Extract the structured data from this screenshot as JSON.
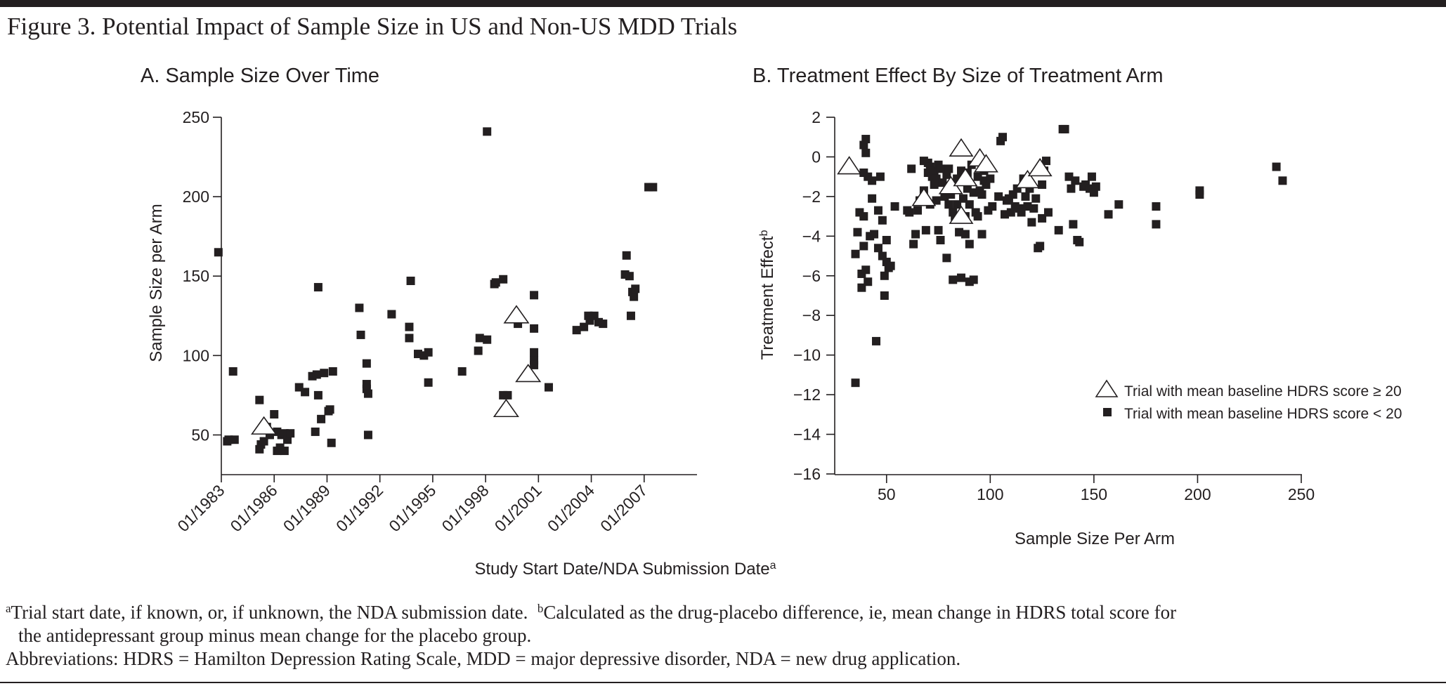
{
  "figure_title": "Figure 3. Potential Impact of Sample Size in US and Non-US MDD Trials",
  "footnotes": {
    "a_marker": "a",
    "a_text": "Trial start date, if known, or, if unknown, the NDA submission date.",
    "b_marker": "b",
    "b_text": "Calculated as the drug-placebo difference, ie, mean change in HDRS total score for",
    "b_text_cont": "the antidepressant group minus mean change for the placebo group.",
    "abbreviations": "Abbreviations: HDRS = Hamilton Depression Rating Scale, MDD = major depressive disorder, NDA = new drug application."
  },
  "chart_data": [
    {
      "type": "scatter",
      "title": "A. Sample Size Over Time",
      "xlabel": "Study Start Date/NDA Submission Date",
      "xlabel_superscript": "a",
      "ylabel": "Sample Size per Arm",
      "x_tick_labels": [
        "01/1983",
        "01/1986",
        "01/1989",
        "01/1992",
        "01/1995",
        "01/1998",
        "01/2001",
        "01/2004",
        "01/2007"
      ],
      "x_range": [
        "01/1983",
        "01/2010"
      ],
      "ylim": [
        25,
        250
      ],
      "y_ticks": [
        50,
        100,
        150,
        200,
        250
      ],
      "grid": false,
      "legend": false,
      "marker_color": "#231f20",
      "series": [
        {
          "marker": "square",
          "points": [
            [
              "11/1982",
              165
            ],
            [
              "05/1983",
              46
            ],
            [
              "06/1983",
              47
            ],
            [
              "10/1983",
              47
            ],
            [
              "09/1983",
              90
            ],
            [
              "03/1985",
              72
            ],
            [
              "03/1985",
              41
            ],
            [
              "04/1985",
              44
            ],
            [
              "06/1985",
              46
            ],
            [
              "08/1985",
              55
            ],
            [
              "10/1985",
              50
            ],
            [
              "01/1986",
              63
            ],
            [
              "03/1986",
              40
            ],
            [
              "03/1986",
              52
            ],
            [
              "05/1986",
              42
            ],
            [
              "06/1986",
              50
            ],
            [
              "08/1986",
              40
            ],
            [
              "08/1986",
              51
            ],
            [
              "10/1986",
              47
            ],
            [
              "12/1986",
              51
            ],
            [
              "06/1987",
              80
            ],
            [
              "10/1987",
              77
            ],
            [
              "03/1988",
              87
            ],
            [
              "05/1988",
              52
            ],
            [
              "07/1988",
              75
            ],
            [
              "06/1988",
              88
            ],
            [
              "07/1988",
              143
            ],
            [
              "09/1988",
              60
            ],
            [
              "11/1988",
              89
            ],
            [
              "03/1989",
              66
            ],
            [
              "02/1989",
              65
            ],
            [
              "04/1989",
              45
            ],
            [
              "05/1989",
              90
            ],
            [
              "11/1990",
              130
            ],
            [
              "12/1990",
              113
            ],
            [
              "04/1991",
              95
            ],
            [
              "04/1991",
              82
            ],
            [
              "04/1991",
              79
            ],
            [
              "05/1991",
              76
            ],
            [
              "05/1991",
              50
            ],
            [
              "09/1992",
              126
            ],
            [
              "10/1993",
              147
            ],
            [
              "09/1993",
              118
            ],
            [
              "09/1993",
              111
            ],
            [
              "03/1994",
              101
            ],
            [
              "07/1994",
              100
            ],
            [
              "10/1994",
              102
            ],
            [
              "10/1994",
              83
            ],
            [
              "09/1996",
              90
            ],
            [
              "08/1997",
              103
            ],
            [
              "09/1997",
              111
            ],
            [
              "02/1998",
              110
            ],
            [
              "02/1998",
              241
            ],
            [
              "07/1998",
              145
            ],
            [
              "08/1998",
              146
            ],
            [
              "01/1999",
              148
            ],
            [
              "01/1999",
              75
            ],
            [
              "04/1999",
              75
            ],
            [
              "11/1999",
              120
            ],
            [
              "10/2000",
              138
            ],
            [
              "10/2000",
              117
            ],
            [
              "10/2000",
              102
            ],
            [
              "10/2000",
              97
            ],
            [
              "10/2000",
              94
            ],
            [
              "08/2001",
              80
            ],
            [
              "03/2003",
              116
            ],
            [
              "08/2003",
              118
            ],
            [
              "11/2003",
              125
            ],
            [
              "12/2003",
              122
            ],
            [
              "03/2004",
              125
            ],
            [
              "06/2004",
              121
            ],
            [
              "09/2004",
              120
            ],
            [
              "12/2005",
              151
            ],
            [
              "01/2006",
              163
            ],
            [
              "03/2006",
              150
            ],
            [
              "05/2006",
              140
            ],
            [
              "04/2006",
              125
            ],
            [
              "06/2006",
              137
            ],
            [
              "07/2006",
              142
            ],
            [
              "04/2007",
              206
            ],
            [
              "07/2007",
              206
            ]
          ]
        },
        {
          "marker": "open-triangle",
          "points": [
            [
              "06/1985",
              55
            ],
            [
              "03/1999",
              66
            ],
            [
              "10/1999",
              125
            ],
            [
              "06/2000",
              88
            ]
          ]
        }
      ]
    },
    {
      "type": "scatter",
      "title": "B. Treatment Effect By Size of Treatment Arm",
      "xlabel": "Sample Size Per Arm",
      "ylabel": "Treatment Effect",
      "ylabel_superscript": "b",
      "xlim": [
        25,
        250
      ],
      "x_ticks": [
        50,
        100,
        150,
        200,
        250
      ],
      "ylim": [
        -16,
        2
      ],
      "y_ticks": [
        2,
        0,
        -2,
        -4,
        -6,
        -8,
        -10,
        -12,
        -14,
        -16
      ],
      "grid": false,
      "legend": "bottom-right",
      "legend_entries": [
        {
          "marker": "open-triangle",
          "label": "Trial with mean baseline HDRS score ≥ 20"
        },
        {
          "marker": "square",
          "label": "Trial with mean baseline HDRS score < 20"
        }
      ],
      "marker_color": "#231f20",
      "series": [
        {
          "marker": "square",
          "points": [
            [
              35,
              -11.4
            ],
            [
              35,
              -4.9
            ],
            [
              36,
              -3.8
            ],
            [
              37,
              -2.8
            ],
            [
              38,
              -6.6
            ],
            [
              38,
              -5.9
            ],
            [
              39,
              -4.5
            ],
            [
              39,
              -3.0
            ],
            [
              39,
              -0.8
            ],
            [
              39,
              0.6
            ],
            [
              40,
              0.9
            ],
            [
              40,
              0.2
            ],
            [
              40,
              -5.7
            ],
            [
              41,
              -6.3
            ],
            [
              41,
              -1.0
            ],
            [
              42,
              -4.0
            ],
            [
              43,
              -2.1
            ],
            [
              43,
              -1.2
            ],
            [
              44,
              -3.9
            ],
            [
              45,
              -9.3
            ],
            [
              46,
              -4.6
            ],
            [
              46,
              -2.7
            ],
            [
              47,
              -1.0
            ],
            [
              48,
              -3.2
            ],
            [
              48,
              -5.0
            ],
            [
              49,
              -6.0
            ],
            [
              49,
              -7.0
            ],
            [
              50,
              -4.2
            ],
            [
              50,
              -5.3
            ],
            [
              51,
              -5.6
            ],
            [
              52,
              -5.5
            ],
            [
              54,
              -2.5
            ],
            [
              60,
              -2.7
            ],
            [
              61,
              -2.8
            ],
            [
              62,
              -0.6
            ],
            [
              63,
              -4.4
            ],
            [
              64,
              -3.9
            ],
            [
              65,
              -2.7
            ],
            [
              66,
              -2.2
            ],
            [
              68,
              -0.2
            ],
            [
              68,
              -1.7
            ],
            [
              69,
              -3.7
            ],
            [
              70,
              -0.3
            ],
            [
              70,
              -0.8
            ],
            [
              71,
              -2.4
            ],
            [
              71,
              -0.5
            ],
            [
              72,
              -1.0
            ],
            [
              73,
              -1.4
            ],
            [
              73,
              -0.7
            ],
            [
              74,
              -2.2
            ],
            [
              74,
              -1.1
            ],
            [
              75,
              -0.4
            ],
            [
              75,
              -3.7
            ],
            [
              76,
              -4.2
            ],
            [
              76,
              -0.6
            ],
            [
              77,
              -1.3
            ],
            [
              78,
              -2.0
            ],
            [
              79,
              -0.9
            ],
            [
              79,
              -5.1
            ],
            [
              80,
              -2.4
            ],
            [
              80,
              -0.6
            ],
            [
              81,
              -1.9
            ],
            [
              82,
              -2.8
            ],
            [
              82,
              -6.2
            ],
            [
              83,
              -3.0
            ],
            [
              84,
              -1.1
            ],
            [
              84,
              -2.4
            ],
            [
              85,
              -3.8
            ],
            [
              86,
              -0.7
            ],
            [
              86,
              -6.1
            ],
            [
              87,
              -2.1
            ],
            [
              88,
              -3.9
            ],
            [
              88,
              -3.0
            ],
            [
              89,
              -1.6
            ],
            [
              89,
              -0.8
            ],
            [
              90,
              -2.4
            ],
            [
              90,
              -4.4
            ],
            [
              90,
              -6.3
            ],
            [
              91,
              -0.4
            ],
            [
              92,
              -6.2
            ],
            [
              92,
              -1.8
            ],
            [
              93,
              -2.8
            ],
            [
              94,
              -1.0
            ],
            [
              94,
              -3.0
            ],
            [
              95,
              -1.7
            ],
            [
              96,
              -1.9
            ],
            [
              96,
              -3.9
            ],
            [
              97,
              -0.7
            ],
            [
              97,
              -1.2
            ],
            [
              98,
              -1.4
            ],
            [
              99,
              -2.7
            ],
            [
              100,
              -1.1
            ],
            [
              101,
              -2.5
            ],
            [
              104,
              -2.0
            ],
            [
              105,
              0.8
            ],
            [
              106,
              1.0
            ],
            [
              107,
              -2.9
            ],
            [
              108,
              -2.2
            ],
            [
              109,
              -2.1
            ],
            [
              110,
              -2.8
            ],
            [
              111,
              -1.9
            ],
            [
              112,
              -2.5
            ],
            [
              113,
              -1.6
            ],
            [
              114,
              -2.6
            ],
            [
              115,
              -2.8
            ],
            [
              116,
              -1.1
            ],
            [
              117,
              -2.0
            ],
            [
              118,
              -2.5
            ],
            [
              119,
              -1.6
            ],
            [
              120,
              -3.3
            ],
            [
              121,
              -2.6
            ],
            [
              122,
              -2.1
            ],
            [
              123,
              -4.6
            ],
            [
              124,
              -4.5
            ],
            [
              125,
              -3.1
            ],
            [
              125,
              -1.4
            ],
            [
              126,
              -0.7
            ],
            [
              127,
              -0.2
            ],
            [
              128,
              -2.8
            ],
            [
              133,
              -3.7
            ],
            [
              135,
              1.4
            ],
            [
              136,
              1.4
            ],
            [
              138,
              -1.0
            ],
            [
              139,
              -1.6
            ],
            [
              140,
              -3.4
            ],
            [
              141,
              -1.2
            ],
            [
              142,
              -4.2
            ],
            [
              143,
              -4.3
            ],
            [
              145,
              -1.5
            ],
            [
              146,
              -1.4
            ],
            [
              148,
              -1.6
            ],
            [
              149,
              -1.0
            ],
            [
              150,
              -1.8
            ],
            [
              151,
              -1.5
            ],
            [
              157,
              -2.9
            ],
            [
              162,
              -2.4
            ],
            [
              180,
              -2.5
            ],
            [
              180,
              -3.4
            ],
            [
              201,
              -1.7
            ],
            [
              201,
              -1.9
            ],
            [
              238,
              -0.5
            ],
            [
              241,
              -1.2
            ]
          ]
        },
        {
          "marker": "open-triangle",
          "points": [
            [
              32,
              -0.5
            ],
            [
              68,
              -2.1
            ],
            [
              81,
              -1.5
            ],
            [
              86,
              -3.0
            ],
            [
              86,
              0.4
            ],
            [
              88,
              -1.1
            ],
            [
              95,
              -0.1
            ],
            [
              98,
              -0.4
            ],
            [
              118,
              -1.2
            ],
            [
              124,
              -0.6
            ]
          ]
        }
      ]
    }
  ]
}
